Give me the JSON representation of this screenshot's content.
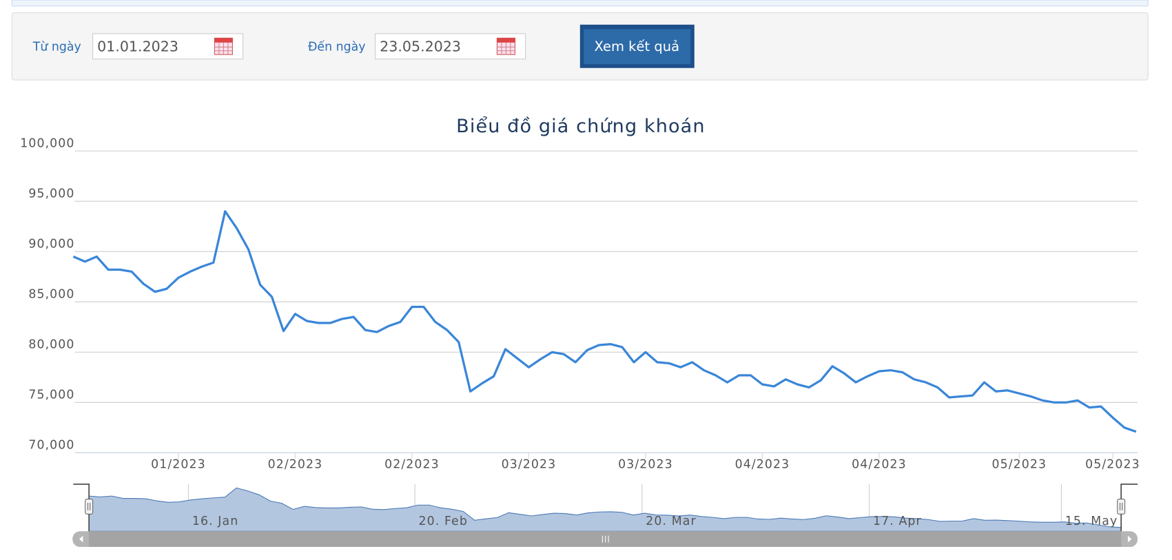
{
  "form": {
    "from_label": "Từ ngày",
    "from_value": "01.01.2023",
    "to_label": "Đến ngày",
    "to_value": "23.05.2023",
    "button": "Xem kết quả"
  },
  "chart_data": {
    "type": "line",
    "title": "Biểu đồ giá chứng khoán",
    "color": "#3a86d8",
    "categories": [
      null,
      null,
      null,
      null,
      null,
      null,
      null,
      null,
      null,
      "01/2023",
      null,
      null,
      null,
      null,
      null,
      null,
      null,
      null,
      null,
      "02/2023",
      null,
      null,
      null,
      null,
      null,
      null,
      null,
      null,
      null,
      "02/2023",
      null,
      null,
      null,
      null,
      null,
      null,
      null,
      null,
      null,
      "03/2023",
      null,
      null,
      null,
      null,
      null,
      null,
      null,
      null,
      null,
      "03/2023",
      null,
      null,
      null,
      null,
      null,
      null,
      null,
      null,
      null,
      "04/2023",
      null,
      null,
      null,
      null,
      null,
      null,
      null,
      null,
      null,
      "04/2023",
      null,
      null,
      null,
      null,
      null,
      null,
      null,
      null,
      null,
      null,
      null,
      "05/2023",
      null,
      null,
      null,
      null,
      null,
      null,
      null,
      "05/2023",
      null,
      null
    ],
    "values": [
      89500,
      89000,
      89500,
      88200,
      88200,
      88000,
      86800,
      86000,
      86300,
      87400,
      88000,
      88500,
      88900,
      94000,
      92300,
      90200,
      86700,
      85500,
      82100,
      83800,
      83100,
      82900,
      82900,
      83300,
      83500,
      82200,
      82000,
      82600,
      83000,
      84500,
      84500,
      83000,
      82200,
      81000,
      76100,
      76900,
      77600,
      80300,
      79400,
      78500,
      79300,
      80000,
      79800,
      79000,
      80200,
      80700,
      80800,
      80500,
      79000,
      80000,
      79000,
      78900,
      78500,
      79000,
      78200,
      77700,
      77000,
      77700,
      77700,
      76800,
      76600,
      77300,
      76800,
      76500,
      77200,
      78600,
      77900,
      77000,
      77600,
      78100,
      78200,
      78000,
      77300,
      77000,
      76500,
      75500,
      75600,
      75700,
      77000,
      76100,
      76200,
      75900,
      75600,
      75200,
      75000,
      75000,
      75200,
      74500,
      74600,
      73500,
      72500,
      72100
    ],
    "ylim": [
      70000,
      100000
    ],
    "yticks": [
      {
        "value": 70000,
        "label": "70,000"
      },
      {
        "value": 75000,
        "label": "75,000"
      },
      {
        "value": 80000,
        "label": "80,000"
      },
      {
        "value": 85000,
        "label": "85,000"
      },
      {
        "value": 90000,
        "label": "90,000"
      },
      {
        "value": 95000,
        "label": "95,000"
      },
      {
        "value": 100000,
        "label": "100,000"
      }
    ],
    "grid": true
  },
  "navigator": {
    "labels": [
      "16. Jan",
      "20. Feb",
      "20. Mar",
      "17. Apr",
      "15. May"
    ]
  }
}
